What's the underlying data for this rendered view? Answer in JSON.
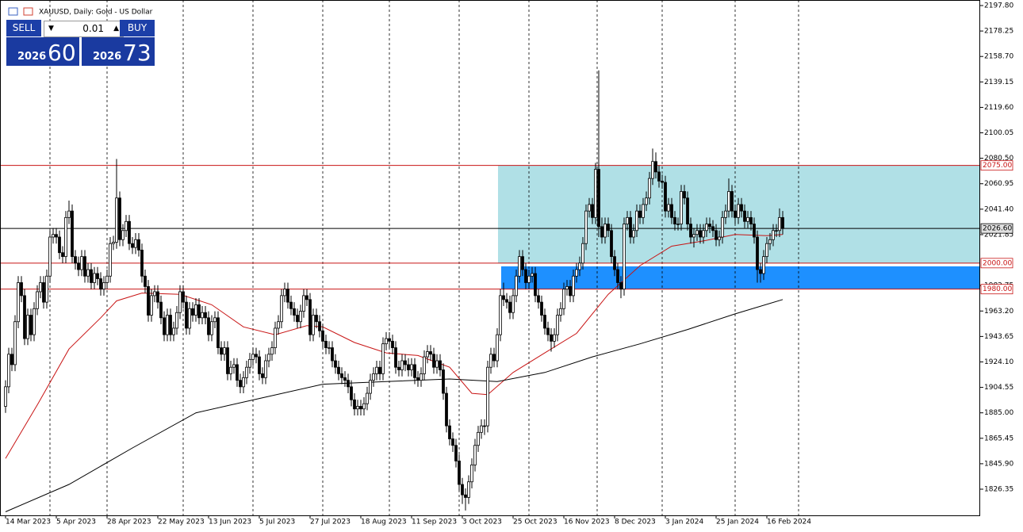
{
  "chart_data": {
    "type": "candlestick",
    "title": "XAUUSD, Daily:  Gold - US Dollar",
    "open": [
      1890,
      1905,
      1930,
      1922,
      1955,
      1985,
      1975,
      1942,
      1960,
      1945,
      1965,
      1978,
      1985,
      1970,
      1990,
      2020,
      2022,
      2020,
      2008,
      2005,
      2035,
      2040,
      2005,
      2000,
      1995,
      2005,
      1990,
      1995,
      1985,
      1992,
      1988,
      1980,
      1985,
      1990,
      2015,
      2016,
      2050,
      2018,
      2025,
      2032,
      2015,
      2012,
      2018,
      2010,
      1990,
      1982,
      1960,
      1975,
      1978,
      1970,
      1958,
      1945,
      1960,
      1945,
      1950,
      1962,
      1978,
      1970,
      1950,
      1965,
      1960,
      1968,
      1958,
      1962,
      1958,
      1945,
      1955,
      1958,
      1935,
      1930,
      1935,
      1915,
      1920,
      1922,
      1910,
      1905,
      1912,
      1920,
      1926,
      1930,
      1928,
      1915,
      1912,
      1925,
      1930,
      1935,
      1950,
      1955,
      1975,
      1980,
      1970,
      1965,
      1960,
      1955,
      1963,
      1975,
      1972,
      1945,
      1960,
      1955,
      1948,
      1940,
      1935,
      1935,
      1925,
      1920,
      1915,
      1912,
      1910,
      1905,
      1895,
      1888,
      1890,
      1888,
      1892,
      1900,
      1910,
      1915,
      1920,
      1915,
      1938,
      1942,
      1940,
      1935,
      1920,
      1918,
      1925,
      1922,
      1918,
      1922,
      1912,
      1910,
      1915,
      1928,
      1932,
      1930,
      1920,
      1925,
      1918,
      1900,
      1875,
      1865,
      1860,
      1848,
      1830,
      1822,
      1820,
      1832,
      1845,
      1860,
      1870,
      1875,
      1875,
      1920,
      1930,
      1925,
      1945,
      1975,
      1972,
      1970,
      1962,
      1975,
      1990,
      2005,
      1995,
      1985,
      1990,
      1992,
      1975,
      1970,
      1960,
      1950,
      1945,
      1940,
      1945,
      1960,
      1965,
      1980,
      1982,
      1975,
      1990,
      1995,
      2000,
      2015,
      2040,
      2045,
      2035,
      2072,
      2028,
      2020,
      2030,
      2025,
      2005,
      1995,
      1985,
      1980,
      2030,
      2035,
      2020,
      2025,
      2040,
      2035,
      2045,
      2050,
      2065,
      2078,
      2070,
      2063,
      2062,
      2040,
      2045,
      2035,
      2030,
      2030,
      2055,
      2050,
      2030,
      2020,
      2022,
      2025,
      2020,
      2025,
      2030,
      2028,
      2025,
      2018,
      2020,
      2035,
      2040,
      2055,
      2040,
      2035,
      2045,
      2040,
      2032,
      2035,
      2030,
      2020,
      1995,
      1992,
      2005,
      2015,
      2018,
      2025,
      2025,
      2035
    ],
    "high": [
      1910,
      1935,
      1935,
      1960,
      1990,
      1990,
      1980,
      1965,
      1965,
      1970,
      1983,
      1990,
      1990,
      1995,
      2025,
      2027,
      2027,
      2025,
      2013,
      2040,
      2048,
      2045,
      2010,
      2005,
      2010,
      2010,
      2000,
      2000,
      1997,
      1997,
      1993,
      1990,
      1995,
      2020,
      2021,
      2080,
      2055,
      2030,
      2037,
      2037,
      2020,
      2023,
      2023,
      2015,
      1995,
      1987,
      1980,
      1983,
      1983,
      1975,
      1963,
      1965,
      1965,
      1955,
      1967,
      1983,
      1983,
      1975,
      1970,
      1970,
      1973,
      1973,
      1967,
      1967,
      1963,
      1960,
      1963,
      1963,
      1940,
      1940,
      1940,
      1925,
      1927,
      1927,
      1915,
      1917,
      1925,
      1931,
      1935,
      1935,
      1933,
      1920,
      1930,
      1935,
      1940,
      1955,
      1960,
      1980,
      1985,
      1985,
      1975,
      1970,
      1965,
      1968,
      1980,
      1980,
      1977,
      1965,
      1965,
      1960,
      1953,
      1945,
      1940,
      1940,
      1930,
      1925,
      1920,
      1917,
      1915,
      1910,
      1900,
      1895,
      1895,
      1897,
      1905,
      1915,
      1920,
      1925,
      1925,
      1943,
      1947,
      1947,
      1945,
      1940,
      1925,
      1930,
      1930,
      1927,
      1927,
      1927,
      1917,
      1920,
      1933,
      1937,
      1937,
      1935,
      1930,
      1930,
      1923,
      1905,
      1880,
      1870,
      1865,
      1853,
      1835,
      1827,
      1837,
      1850,
      1865,
      1875,
      1880,
      1880,
      1925,
      1935,
      1935,
      1950,
      1980,
      1985,
      1977,
      1975,
      1980,
      1995,
      2010,
      2010,
      2000,
      1995,
      1997,
      1997,
      1980,
      1975,
      1965,
      1955,
      1950,
      1950,
      1965,
      1970,
      1985,
      1987,
      1987,
      1995,
      2000,
      2005,
      2020,
      2045,
      2050,
      2050,
      2077,
      2148,
      2035,
      2035,
      2035,
      2030,
      2010,
      2000,
      1990,
      2035,
      2040,
      2040,
      2030,
      2045,
      2045,
      2050,
      2055,
      2070,
      2088,
      2085,
      2075,
      2068,
      2067,
      2050,
      2050,
      2040,
      2035,
      2060,
      2060,
      2055,
      2035,
      2027,
      2030,
      2030,
      2030,
      2035,
      2035,
      2033,
      2030,
      2025,
      2040,
      2045,
      2065,
      2060,
      2045,
      2050,
      2050,
      2045,
      2040,
      2040,
      2035,
      2025,
      2000,
      2010,
      2020,
      2023,
      2030,
      2030,
      2042,
      2040
    ],
    "low": [
      1885,
      1900,
      1917,
      1917,
      1950,
      1970,
      1937,
      1937,
      1940,
      1940,
      1960,
      1973,
      1965,
      1965,
      1985,
      2015,
      2015,
      2003,
      2000,
      2000,
      2030,
      2000,
      1995,
      1990,
      1990,
      1985,
      1985,
      1980,
      1980,
      1983,
      1975,
      1975,
      1980,
      1985,
      2010,
      2011,
      2013,
      2013,
      2020,
      2010,
      2007,
      2007,
      2005,
      1985,
      1977,
      1955,
      1955,
      1970,
      1965,
      1953,
      1940,
      1940,
      1940,
      1940,
      1945,
      1957,
      1965,
      1945,
      1945,
      1955,
      1955,
      1953,
      1953,
      1953,
      1940,
      1940,
      1950,
      1930,
      1925,
      1925,
      1910,
      1910,
      1915,
      1905,
      1900,
      1900,
      1907,
      1915,
      1921,
      1923,
      1910,
      1907,
      1907,
      1920,
      1925,
      1930,
      1945,
      1950,
      1970,
      1965,
      1960,
      1955,
      1950,
      1950,
      1958,
      1967,
      1940,
      1940,
      1950,
      1943,
      1935,
      1930,
      1930,
      1920,
      1915,
      1910,
      1907,
      1905,
      1900,
      1890,
      1883,
      1883,
      1883,
      1883,
      1887,
      1895,
      1905,
      1910,
      1910,
      1910,
      1933,
      1935,
      1930,
      1915,
      1913,
      1913,
      1917,
      1913,
      1913,
      1907,
      1905,
      1905,
      1910,
      1923,
      1925,
      1915,
      1915,
      1913,
      1895,
      1870,
      1860,
      1855,
      1843,
      1825,
      1815,
      1810,
      1815,
      1827,
      1840,
      1855,
      1865,
      1868,
      1870,
      1915,
      1920,
      1920,
      1940,
      1967,
      1965,
      1957,
      1957,
      1970,
      1985,
      1990,
      1980,
      1980,
      1985,
      1970,
      1965,
      1955,
      1945,
      1940,
      1932,
      1935,
      1940,
      1955,
      1960,
      1975,
      1970,
      1970,
      1985,
      1990,
      1995,
      2010,
      2035,
      2030,
      2030,
      2020,
      2015,
      2015,
      2020,
      2000,
      1990,
      1980,
      1973,
      1975,
      2025,
      2015,
      2015,
      2020,
      2030,
      2030,
      2040,
      2045,
      2060,
      2065,
      2058,
      2057,
      2035,
      2035,
      2030,
      2025,
      2025,
      2025,
      2045,
      2025,
      2015,
      2012,
      2017,
      2015,
      2015,
      2020,
      2023,
      2020,
      2013,
      2013,
      2015,
      2030,
      2035,
      2035,
      2030,
      2030,
      2035,
      2027,
      2027,
      2025,
      2015,
      1985,
      1985,
      1987,
      2000,
      2010,
      2013,
      2020,
      2020,
      2022
    ],
    "close": [
      1905,
      1930,
      1922,
      1955,
      1985,
      1975,
      1942,
      1960,
      1945,
      1965,
      1978,
      1985,
      1970,
      1990,
      2020,
      2022,
      2020,
      2008,
      2005,
      2035,
      2040,
      2005,
      2000,
      1995,
      2005,
      1990,
      1995,
      1985,
      1992,
      1988,
      1980,
      1985,
      1990,
      2015,
      2016,
      2050,
      2018,
      2025,
      2032,
      2015,
      2012,
      2018,
      2010,
      1990,
      1982,
      1960,
      1975,
      1978,
      1970,
      1958,
      1945,
      1960,
      1945,
      1950,
      1962,
      1978,
      1970,
      1950,
      1965,
      1960,
      1968,
      1958,
      1962,
      1958,
      1945,
      1955,
      1958,
      1935,
      1930,
      1935,
      1915,
      1920,
      1922,
      1910,
      1905,
      1912,
      1920,
      1926,
      1930,
      1928,
      1915,
      1912,
      1925,
      1930,
      1935,
      1950,
      1955,
      1975,
      1980,
      1970,
      1965,
      1960,
      1955,
      1963,
      1975,
      1972,
      1945,
      1960,
      1955,
      1948,
      1940,
      1935,
      1935,
      1925,
      1920,
      1915,
      1912,
      1910,
      1905,
      1895,
      1888,
      1890,
      1888,
      1892,
      1900,
      1910,
      1915,
      1920,
      1915,
      1938,
      1942,
      1940,
      1935,
      1920,
      1918,
      1925,
      1922,
      1918,
      1922,
      1912,
      1910,
      1915,
      1928,
      1932,
      1930,
      1920,
      1925,
      1918,
      1900,
      1875,
      1865,
      1860,
      1848,
      1830,
      1822,
      1820,
      1832,
      1845,
      1860,
      1870,
      1875,
      1875,
      1920,
      1930,
      1925,
      1945,
      1975,
      1972,
      1970,
      1962,
      1975,
      1990,
      2005,
      1995,
      1985,
      1990,
      1992,
      1975,
      1970,
      1960,
      1950,
      1945,
      1940,
      1945,
      1960,
      1965,
      1980,
      1982,
      1975,
      1990,
      1995,
      2000,
      2015,
      2040,
      2045,
      2035,
      2072,
      2028,
      2020,
      2030,
      2025,
      2005,
      1995,
      1985,
      1980,
      2030,
      2035,
      2020,
      2025,
      2040,
      2035,
      2045,
      2050,
      2065,
      2078,
      2070,
      2063,
      2062,
      2040,
      2045,
      2035,
      2030,
      2030,
      2055,
      2050,
      2030,
      2020,
      2022,
      2025,
      2020,
      2025,
      2030,
      2028,
      2025,
      2018,
      2020,
      2035,
      2040,
      2055,
      2040,
      2035,
      2045,
      2040,
      2032,
      2035,
      2030,
      2020,
      1995,
      1992,
      2005,
      2015,
      2018,
      2025,
      2025,
      2035,
      2026.6
    ],
    "xlim": [
      -1.75,
      307.25
    ],
    "xticks": [
      {
        "value": 0,
        "label": "14 Mar 2023"
      },
      {
        "value": 16,
        "label": "5 Apr 2023"
      },
      {
        "value": 32,
        "label": "28 Apr 2023"
      },
      {
        "value": 48,
        "label": "22 May 2023"
      },
      {
        "value": 64,
        "label": "13 Jun 2023"
      },
      {
        "value": 80,
        "label": "5 Jul 2023"
      },
      {
        "value": 96,
        "label": "27 Jul 2023"
      },
      {
        "value": 112,
        "label": "18 Aug 2023"
      },
      {
        "value": 128,
        "label": "11 Sep 2023"
      },
      {
        "value": 144,
        "label": "3 Oct 2023"
      },
      {
        "value": 160,
        "label": "25 Oct 2023"
      },
      {
        "value": 176,
        "label": "16 Nov 2023"
      },
      {
        "value": 192,
        "label": "8 Dec 2023"
      },
      {
        "value": 208,
        "label": "3 Jan 2024"
      },
      {
        "value": 224,
        "label": "25 Jan 2024"
      },
      {
        "value": 240,
        "label": "16 Feb 2024"
      }
    ],
    "separators": [
      14,
      32,
      56,
      78,
      100,
      121,
      143,
      165,
      186.5,
      207,
      230,
      250
    ],
    "ylim": [
      1806.26,
      2197.8
    ],
    "yticks": [
      {
        "value": 2197.8,
        "label": "2197.80"
      },
      2178.25,
      {
        "value": 2158.7,
        "label": "2158.70"
      },
      2139.15,
      {
        "value": 2119.6,
        "label": "2119.60"
      },
      2100.05,
      {
        "value": 2080.5,
        "label": "2080.50"
      },
      2060.95,
      {
        "value": 2041.4,
        "label": "2041.40"
      },
      2021.85,
      1982.75,
      {
        "value": 1963.2,
        "label": "1963.20"
      },
      1943.65,
      {
        "value": 1924.1,
        "label": "1924.10"
      },
      1904.55,
      {
        "value": 1885,
        "label": "1885.00"
      },
      1865.45,
      {
        "value": 1845.9,
        "label": "1845.90"
      },
      1826.35
    ],
    "series": [
      {
        "color": "#c81414",
        "x": [
          0,
          10,
          20,
          30,
          35,
          43,
          55,
          65,
          75,
          85,
          95,
          100,
          110,
          120,
          130,
          140,
          147,
          152,
          160,
          170,
          180,
          190,
          200,
          210,
          220,
          230,
          240,
          245
        ],
        "values": [
          1850,
          1891,
          1934,
          1958,
          1971,
          1977,
          1976,
          1968,
          1951,
          1945,
          1952,
          1951,
          1939,
          1931,
          1929,
          1920,
          1900,
          1899,
          1916,
          1931,
          1946,
          1976,
          1998,
          2013,
          2017,
          2022,
          2021,
          2022
        ]
      },
      {
        "color": "#000000",
        "x": [
          0,
          20,
          40,
          60,
          80,
          100,
          120,
          140,
          155,
          170,
          185,
          200,
          215,
          230,
          245
        ],
        "values": [
          1809,
          1830,
          1858,
          1885,
          1896,
          1907,
          1909,
          1911,
          1909,
          1916,
          1928,
          1938,
          1949,
          1961,
          1972
        ]
      }
    ],
    "zones": [
      {
        "from": 155.25,
        "range": [
          2000,
          2075
        ],
        "color": "#b0e0e6"
      },
      {
        "from": 156.25,
        "range": [
          1980,
          1997.5
        ],
        "color": "#1e90ff"
      }
    ],
    "hlines": [
      {
        "value": 2075,
        "label": "2075.00",
        "color": "#c81414",
        "text_color": "#c81414"
      },
      {
        "value": 2000,
        "label": "2000.00",
        "color": "#c81414",
        "text_color": "#c81414"
      },
      {
        "value": 1980,
        "label": "1980.00",
        "color": "#c81414",
        "text_color": "#c81414"
      },
      {
        "value": 2026.6,
        "label": "2026.60",
        "color": "#000000",
        "text_color": "#000000"
      }
    ]
  },
  "trade_panel": {
    "sell": "SELL",
    "lot": "0.01",
    "buy": "BUY",
    "bid": {
      "figure": "2026",
      "points": "60"
    },
    "ask": {
      "figure": "2026",
      "points": "73"
    }
  }
}
